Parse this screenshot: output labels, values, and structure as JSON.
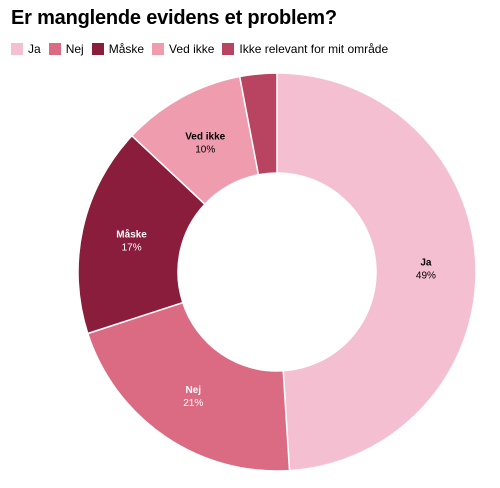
{
  "chart_data": {
    "type": "pie",
    "title": "Er manglende evidens et problem?",
    "donut": true,
    "legend_position": "top-left",
    "categories": [
      "Ja",
      "Nej",
      "Måske",
      "Ved ikke",
      "Ikke relevant for mit område"
    ],
    "values": [
      49,
      21,
      17,
      10,
      3
    ],
    "value_labels": [
      "49%",
      "21%",
      "17%",
      "10%",
      null
    ],
    "colors": [
      "#f5bfd2",
      "#db6b83",
      "#8a1d3c",
      "#f09caf",
      "#b84461"
    ],
    "label_colors": [
      "#000000",
      "#ffffff",
      "#ffffff",
      "#000000",
      "#ffffff"
    ]
  }
}
